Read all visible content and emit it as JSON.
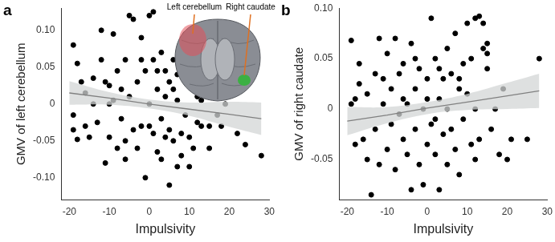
{
  "chart_data": [
    {
      "type": "scatter",
      "panel_label": "a",
      "x_label": "Impulsivity",
      "y_label": "GMV of left cerebellum",
      "annotations": [
        "Left cerebellum",
        "Right caudate"
      ],
      "color": "#000000",
      "x": [
        -19,
        -18,
        -19,
        -18,
        -17,
        -16,
        -16,
        -15,
        -14,
        -13,
        -12,
        -12,
        -11,
        -11,
        -10,
        -10,
        -9,
        -9,
        -8,
        -8,
        -7,
        -7,
        -6,
        -6,
        -5,
        -5,
        -4,
        -4,
        -3,
        -3,
        -2,
        -2,
        -1,
        -1,
        0,
        0,
        0,
        1,
        1,
        1,
        2,
        2,
        3,
        3,
        3,
        4,
        4,
        5,
        5,
        5,
        6,
        6,
        7,
        7,
        7,
        8,
        8,
        9,
        9,
        10,
        10,
        11,
        11,
        12,
        12,
        13,
        13,
        14,
        15,
        15,
        16,
        17,
        18,
        19,
        20,
        22,
        24,
        25,
        28,
        -19,
        -14,
        -6,
        2,
        8,
        12,
        4,
        -2,
        -10,
        6,
        10
      ],
      "values": [
        0.08,
        0.055,
        -0.035,
        -0.048,
        0.03,
        -0.03,
        0.015,
        -0.045,
        0.0,
        -0.025,
        0.1,
        0.06,
        0.03,
        -0.08,
        0.025,
        -0.045,
        0.095,
        0.005,
        -0.06,
        0.045,
        0.02,
        -0.02,
        -0.05,
        0.06,
        0.12,
        0.01,
        -0.035,
        0.115,
        0.03,
        -0.06,
        0.09,
        -0.03,
        -0.1,
        0.045,
        0.12,
        0.0,
        -0.03,
        0.125,
        -0.04,
        0.06,
        -0.065,
        0.02,
        0.07,
        -0.075,
        -0.02,
        0.01,
        0.045,
        -0.035,
        0.03,
        -0.11,
        0.02,
        -0.05,
        0.04,
        -0.085,
        0.005,
        0.06,
        -0.07,
        0.095,
        -0.015,
        -0.045,
        0.025,
        0.03,
        -0.06,
        0.035,
        -0.025,
        0.005,
        -0.03,
        0.02,
        -0.03,
        -0.06,
        0.025,
        -0.015,
        -0.03,
        0.0,
        0.015,
        -0.04,
        -0.055,
        0.03,
        -0.07,
        -0.015,
        0.035,
        -0.075,
        0.045,
        -0.04,
        0.01,
        -0.045,
        0.06,
        0.0,
        0.06,
        -0.085
      ],
      "fit": {
        "color": "#808080",
        "band_color": "#d3d6d6",
        "x": [
          -20,
          -10,
          0,
          10,
          20,
          28
        ],
        "values": [
          0.015,
          0.008,
          0.0,
          -0.007,
          -0.014,
          -0.02
        ],
        "lower": [
          -0.001,
          -0.001,
          -0.006,
          -0.016,
          -0.031,
          -0.042
        ],
        "upper": [
          0.031,
          0.016,
          0.006,
          0.002,
          0.003,
          0.002
        ]
      },
      "xlim": [
        -22,
        30
      ],
      "xticks": [
        -20,
        -10,
        0,
        10,
        20,
        30
      ],
      "ylim": [
        -0.13,
        0.13
      ],
      "yticks": [
        {
          "value": -0.1,
          "label": "-0.10"
        },
        -0.05,
        0,
        0.05,
        {
          "value": 0.1,
          "label": "0.10"
        }
      ],
      "grid": false
    },
    {
      "type": "scatter",
      "panel_label": "b",
      "x_label": "Impulsivity",
      "y_label": "GMV of right caudate",
      "color": "#000000",
      "x": [
        -19,
        -19,
        -18,
        -17,
        -17,
        -16,
        -15,
        -15,
        -14,
        -13,
        -13,
        -12,
        -12,
        -11,
        -10,
        -10,
        -9,
        -9,
        -8,
        -8,
        -7,
        -7,
        -6,
        -6,
        -5,
        -5,
        -4,
        -4,
        -3,
        -3,
        -2,
        -2,
        -1,
        -1,
        0,
        0,
        0,
        1,
        1,
        2,
        2,
        3,
        3,
        4,
        4,
        5,
        5,
        5,
        6,
        6,
        7,
        7,
        8,
        8,
        9,
        9,
        10,
        10,
        11,
        11,
        12,
        12,
        13,
        13,
        14,
        14,
        15,
        15,
        15,
        16,
        17,
        18,
        19,
        20,
        21,
        25,
        28,
        -18,
        -11,
        -3,
        3,
        8,
        12,
        -6,
        2
      ],
      "values": [
        0.068,
        0.005,
        -0.035,
        0.045,
        0.025,
        -0.03,
        -0.05,
        0.015,
        -0.085,
        0.035,
        -0.02,
        0.07,
        -0.055,
        0.005,
        0.055,
        -0.04,
        0.02,
        -0.015,
        0.07,
        -0.06,
        0.035,
        -0.005,
        -0.03,
        0.045,
        0.005,
        -0.045,
        0.065,
        -0.08,
        0.02,
        -0.02,
        0.04,
        -0.055,
        0.0,
        -0.075,
        0.03,
        -0.035,
        0.01,
        0.09,
        -0.015,
        0.05,
        -0.045,
        0.01,
        -0.08,
        0.03,
        -0.025,
        0.06,
        0.0,
        -0.055,
        0.035,
        -0.02,
        0.075,
        -0.04,
        0.02,
        -0.065,
        0.045,
        -0.01,
        0.085,
        0.015,
        -0.035,
        0.05,
        0.09,
        0.0,
        0.092,
        -0.03,
        0.06,
        0.085,
        0.065,
        0.04,
        0.055,
        -0.02,
        0.0,
        -0.045,
        0.02,
        -0.05,
        -0.03,
        -0.03,
        0.05,
        0.01,
        0.03,
        0.05,
        0.04,
        0.03,
        -0.05,
        0.01,
        -0.01
      ],
      "fit": {
        "color": "#808080",
        "band_color": "#d3d6d6",
        "x": [
          -20,
          -10,
          0,
          10,
          20,
          28
        ],
        "values": [
          -0.012,
          -0.006,
          0.001,
          0.007,
          0.013,
          0.018
        ],
        "lower": [
          -0.026,
          -0.014,
          -0.005,
          -0.001,
          0.0,
          0.001
        ],
        "upper": [
          0.002,
          0.002,
          0.007,
          0.015,
          0.026,
          0.035
        ]
      },
      "xlim": [
        -22,
        30
      ],
      "xticks": [
        -20,
        -10,
        0,
        10,
        20,
        30
      ],
      "ylim": [
        -0.09,
        0.1
      ],
      "yticks": [
        -0.05,
        0,
        0.05,
        {
          "value": 0.1,
          "label": "0.10"
        }
      ],
      "grid": false
    }
  ]
}
